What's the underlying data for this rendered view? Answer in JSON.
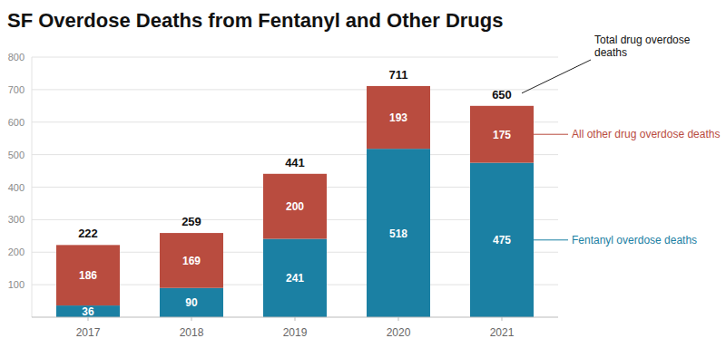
{
  "chart_data": {
    "type": "bar",
    "title": "SF Overdose Deaths from Fentanyl and Other Drugs",
    "categories": [
      "2017",
      "2018",
      "2019",
      "2020",
      "2021"
    ],
    "series": [
      {
        "name": "Fentanyl overdose deaths",
        "color": "#1b80a3",
        "values": [
          36,
          90,
          241,
          518,
          475
        ]
      },
      {
        "name": "All other drug overdose deaths",
        "color": "#b94c3f",
        "values": [
          186,
          169,
          200,
          193,
          175
        ]
      }
    ],
    "totals": {
      "label": "Total drug overdose deaths",
      "values": [
        222,
        259,
        441,
        711,
        650
      ]
    },
    "ylim": [
      0,
      800
    ],
    "yticks": [
      100,
      200,
      300,
      400,
      500,
      600,
      700,
      800
    ],
    "stacked": true,
    "data_labels": true,
    "grid": true,
    "legend": "right"
  }
}
